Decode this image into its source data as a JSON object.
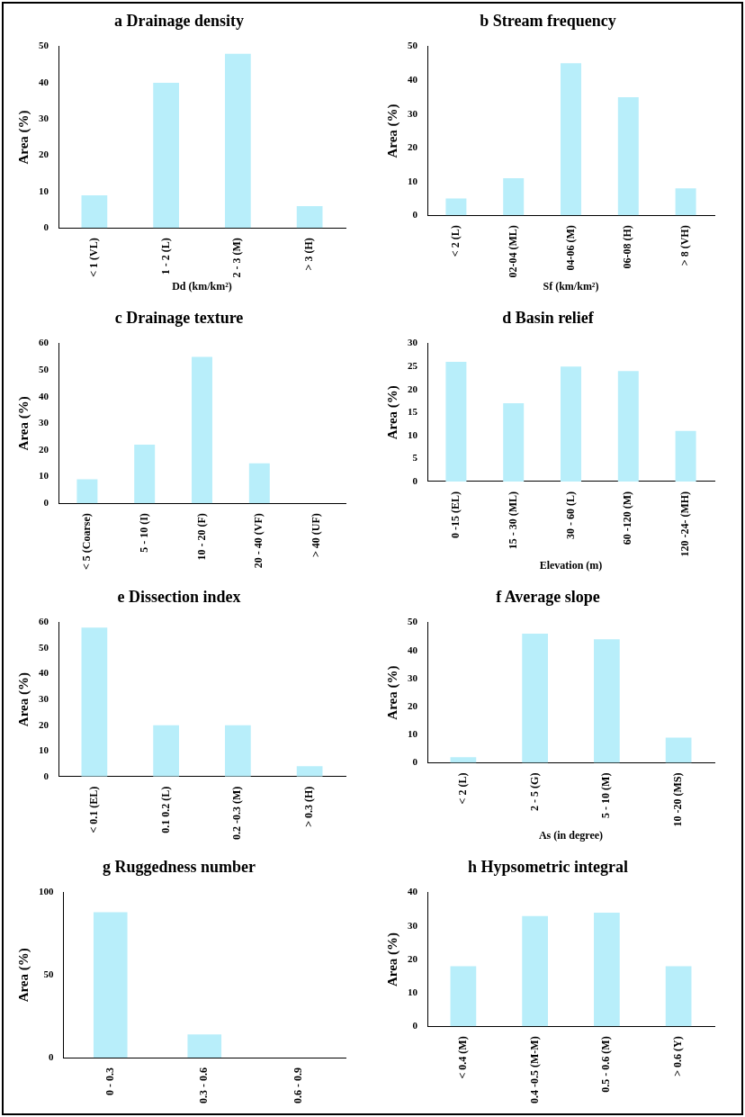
{
  "chart_data": [
    {
      "type": "bar",
      "title": "a Drainage density",
      "xlabel": "Dd (km/km²)",
      "ylabel": "Area (%)",
      "categories": [
        "< 1 (VL)",
        "1 - 2 (L)",
        "2 - 3 (M)",
        "> 3 (H)"
      ],
      "values": [
        9,
        40,
        48,
        6
      ],
      "color": "#b8eefa",
      "ylim": [
        0,
        50
      ],
      "yticks": [
        0,
        10,
        20,
        30,
        40,
        50
      ]
    },
    {
      "type": "bar",
      "title": "b Stream frequency",
      "xlabel": "Sf (km/km²)",
      "ylabel": "Area (%)",
      "categories": [
        "< 2 (L)",
        "02-04 (ML)",
        "04-06 (M)",
        "06-08 (H)",
        "> 8 (VH)"
      ],
      "values": [
        5,
        11,
        45,
        35,
        8
      ],
      "color": "#b8eefa",
      "ylim": [
        0,
        50
      ],
      "yticks": [
        0,
        10,
        20,
        30,
        40,
        50
      ]
    },
    {
      "type": "bar",
      "title": "c Drainage texture",
      "ylabel": "Area (%)",
      "categories": [
        "< 5 (Coarse)",
        "5 - 10 (I)",
        "10 - 20 (F)",
        "20 - 40 (VF)",
        "> 40 (UF)"
      ],
      "values": [
        9,
        22,
        55,
        15,
        0
      ],
      "color": "#b8eefa",
      "ylim": [
        0,
        60
      ],
      "yticks": [
        0,
        10,
        20,
        30,
        40,
        50,
        60
      ]
    },
    {
      "type": "bar",
      "title": "d Basin relief",
      "xlabel": "Elevation (m)",
      "ylabel": "Area (%)",
      "categories": [
        "0 -15 (EL)",
        "15 - 30 (ML)",
        "30 - 60 (L)",
        "60 -120 (M)",
        "120 -24- (MH)"
      ],
      "values": [
        26,
        17,
        25,
        24,
        11
      ],
      "color": "#b8eefa",
      "ylim": [
        0,
        30
      ],
      "yticks": [
        0,
        5,
        10,
        15,
        20,
        25,
        30
      ]
    },
    {
      "type": "bar",
      "title": "e Dissection index",
      "ylabel": "Area (%)",
      "categories": [
        "< 0.1 (EL)",
        "0.1 0.2 (L)",
        "0.2 -0.3 (M)",
        "> 0.3 (H)"
      ],
      "values": [
        58,
        20,
        20,
        4
      ],
      "color": "#b8eefa",
      "ylim": [
        0,
        60
      ],
      "yticks": [
        0,
        10,
        20,
        30,
        40,
        50,
        60
      ]
    },
    {
      "type": "bar",
      "title": "f Average slope",
      "xlabel": "As (in degree)",
      "ylabel": "Area (%)",
      "categories": [
        "< 2 (L)",
        "2 - 5 (G)",
        "5 - 10 (M)",
        "10 -20 (MS)"
      ],
      "values": [
        2,
        46,
        44,
        9
      ],
      "color": "#b8eefa",
      "ylim": [
        0,
        50
      ],
      "yticks": [
        0,
        10,
        20,
        30,
        40,
        50
      ]
    },
    {
      "type": "bar",
      "title": "g Ruggedness number",
      "ylabel": "Area (%)",
      "categories": [
        "0 - 0.3",
        "0.3 - 0.6",
        "0.6 - 0.9"
      ],
      "values": [
        88,
        14,
        0
      ],
      "color": "#b8eefa",
      "ylim": [
        0,
        100
      ],
      "yticks": [
        0,
        50,
        100
      ]
    },
    {
      "type": "bar",
      "title": "h Hypsometric integral",
      "ylabel": "Area (%)",
      "categories": [
        "< 0.4 (M)",
        "0.4 -0.5 (M-M)",
        "0.5 - 0.6 (M)",
        "> 0.6 (Y)"
      ],
      "values": [
        18,
        33,
        34,
        18
      ],
      "color": "#b8eefa",
      "ylim": [
        0,
        40
      ],
      "yticks": [
        0,
        10,
        20,
        30,
        40
      ]
    }
  ]
}
